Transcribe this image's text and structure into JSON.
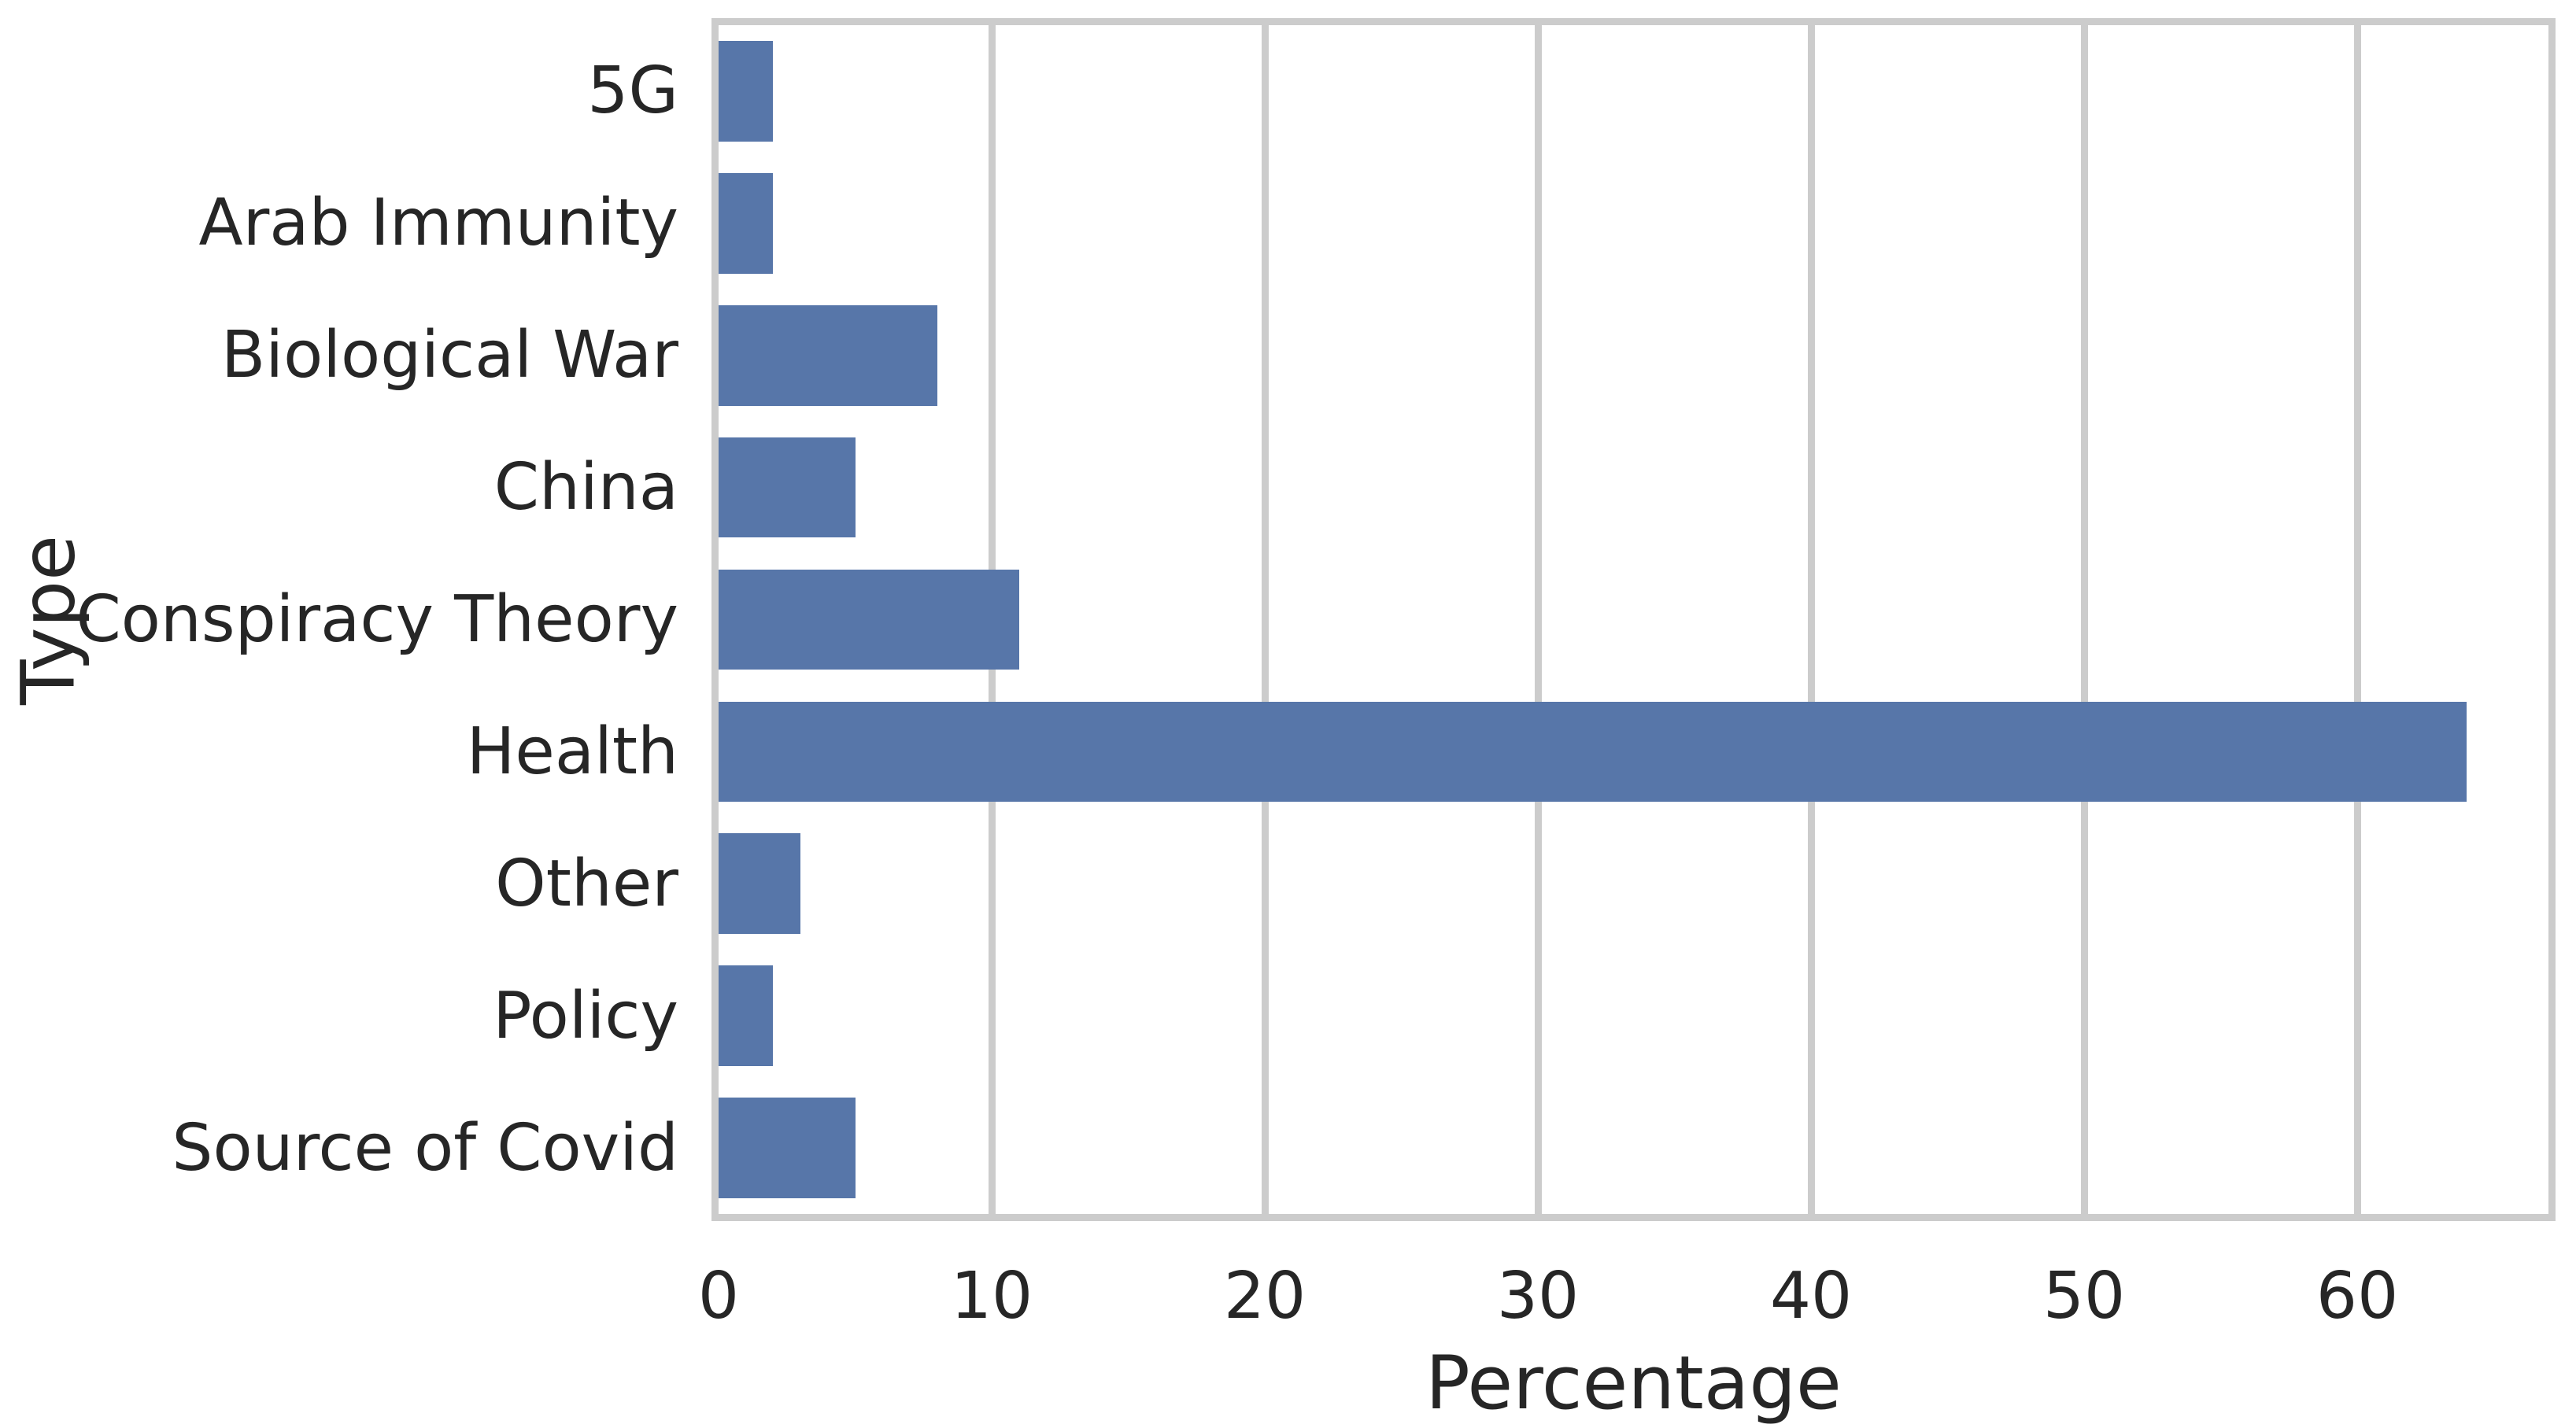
{
  "chart_data": {
    "type": "bar",
    "orientation": "horizontal",
    "title": "",
    "xlabel": "Percentage",
    "ylabel": "Type",
    "categories": [
      "5G",
      "Arab Immunity",
      "Biological War",
      "China",
      "Conspiracy Theory",
      "Health",
      "Other",
      "Policy",
      "Source of Covid"
    ],
    "values": [
      2,
      2,
      8,
      5,
      11,
      64,
      3,
      2,
      5
    ],
    "xticks": [
      0,
      10,
      20,
      30,
      40,
      50,
      60
    ],
    "xlim": [
      0,
      67
    ],
    "grid": "vertical-gridlines-on",
    "legend": "none",
    "colors": {
      "bar": "#5776a9",
      "grid": "#cccccc",
      "spine": "#cccccc",
      "text": "#262626",
      "background": "#ffffff"
    }
  }
}
